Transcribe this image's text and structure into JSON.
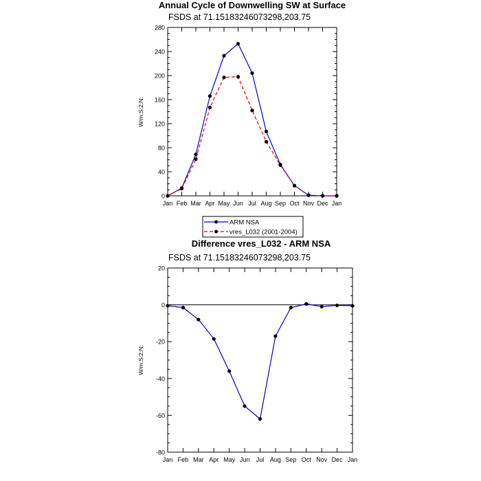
{
  "chart_data": [
    {
      "type": "line",
      "title": "Annual Cycle of Downwelling SW at Surface",
      "subtitle": "FSDS at 71.15183246073298,203.75",
      "ylabel": "W/m:S:2:N:",
      "xlabel": "",
      "categories": [
        "Jan",
        "Feb",
        "Mar",
        "Apr",
        "May",
        "Jun",
        "Jul",
        "Aug",
        "Sep",
        "Oct",
        "Nov",
        "Dec",
        "Jan"
      ],
      "ylim": [
        0,
        280
      ],
      "yticks": [
        "0",
        "40",
        "80",
        "120",
        "160",
        "200",
        "240",
        "280"
      ],
      "series": [
        {
          "name": "ARM NSA",
          "color": "#0000cc",
          "dash": "solid",
          "values": [
            0,
            13,
            69,
            166,
            233,
            253,
            204,
            107,
            52,
            17,
            1,
            0,
            0
          ]
        },
        {
          "name": "vres_L032 (2001-2004)",
          "color": "#dd0000",
          "dash": "dashed",
          "values": [
            0,
            12,
            61,
            147,
            197,
            198,
            142,
            90,
            51,
            17,
            1,
            0,
            0
          ]
        }
      ],
      "legend_position": "below"
    },
    {
      "type": "line",
      "title": "Difference vres_L032 - ARM NSA",
      "subtitle": "FSDS at 71.15183246073298,203.75",
      "ylabel": "W/m:S:2:N:",
      "xlabel": "",
      "categories": [
        "Jan",
        "Feb",
        "Mar",
        "Apr",
        "May",
        "Jun",
        "Jul",
        "Aug",
        "Sep",
        "Oct",
        "Nov",
        "Dec",
        "Jan"
      ],
      "ylim": [
        -80,
        20
      ],
      "yticks": [
        "20",
        "0",
        "-20",
        "-40",
        "-60",
        "-80"
      ],
      "zero_line": true,
      "series": [
        {
          "color": "#0000cc",
          "dash": "solid",
          "values": [
            -0.5,
            -1.5,
            -8,
            -18.5,
            -36,
            -55,
            -62,
            -17,
            -1.5,
            0.5,
            -1,
            -0.3,
            -0.5
          ]
        }
      ]
    }
  ]
}
